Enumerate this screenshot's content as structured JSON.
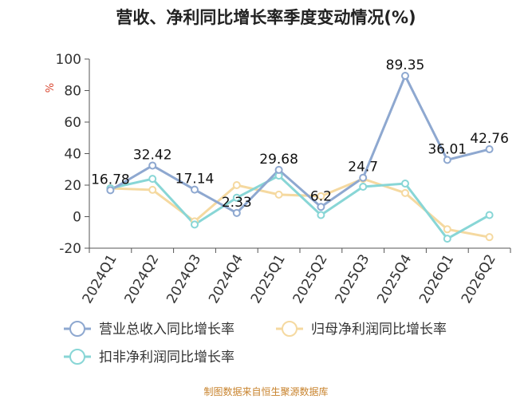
{
  "title": "营收、净利同比增长率季度变动情况(%)",
  "credit": "制图数据来自恒生聚源数据库",
  "chart_data": {
    "type": "line",
    "ylabel": "%",
    "ylim": [
      -20,
      100
    ],
    "yticks": [
      -20,
      0,
      20,
      40,
      60,
      80,
      100
    ],
    "grid": false,
    "legend_position": "bottom",
    "categories": [
      "2024Q1",
      "2024Q2",
      "2024Q3",
      "2024Q4",
      "2025Q1",
      "2025Q2",
      "2025Q3",
      "2025Q4",
      "2026Q1",
      "2026Q2"
    ],
    "series": [
      {
        "name": "营业总收入同比增长率",
        "color": "#8ea8d0",
        "values": [
          16.78,
          32.42,
          17.14,
          2.33,
          29.68,
          6.2,
          24.7,
          89.35,
          36.01,
          42.76
        ],
        "labels": [
          "16.78",
          "32.42",
          "17.14",
          "2.33",
          "29.68",
          "6.2",
          "24.7",
          "89.35",
          "36.01",
          "42.76"
        ]
      },
      {
        "name": "归母净利润同比增长率",
        "color": "#f5d9a0",
        "values": [
          18,
          17,
          -3,
          20,
          14,
          13,
          24,
          15,
          -8,
          -13
        ]
      },
      {
        "name": "扣非净利润同比增长率",
        "color": "#88d6d6",
        "values": [
          18,
          24,
          -5,
          12,
          26,
          1,
          19,
          21,
          -14,
          1
        ]
      }
    ]
  }
}
